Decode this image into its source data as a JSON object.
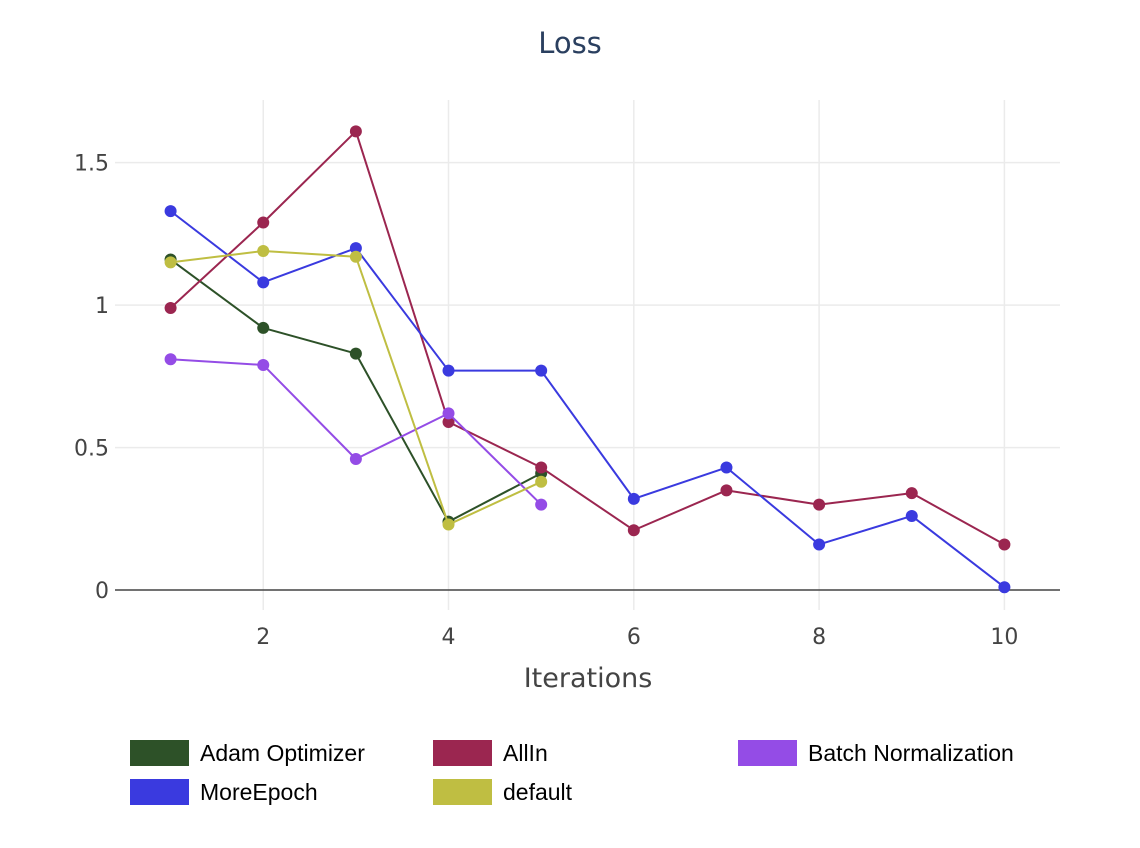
{
  "chart_data": {
    "type": "line",
    "title": "Loss",
    "xlabel": "Iterations",
    "ylabel": "",
    "xlim": [
      0.4,
      10.6
    ],
    "ylim": [
      -0.07,
      1.72
    ],
    "x_ticks": [
      {
        "value": 2,
        "label": "2"
      },
      {
        "value": 4,
        "label": "4"
      },
      {
        "value": 6,
        "label": "6"
      },
      {
        "value": 8,
        "label": "8"
      },
      {
        "value": 10,
        "label": "10"
      }
    ],
    "y_ticks": [
      {
        "value": 0,
        "label": "0"
      },
      {
        "value": 0.5,
        "label": "0.5"
      },
      {
        "value": 1,
        "label": "1"
      },
      {
        "value": 1.5,
        "label": "1.5"
      }
    ],
    "grid": true,
    "legend_position": "bottom",
    "series": [
      {
        "name": "Adam Optimizer",
        "color": "#2d5128",
        "x": [
          1,
          2,
          3,
          4,
          5
        ],
        "y": [
          1.16,
          0.92,
          0.83,
          0.24,
          0.41
        ]
      },
      {
        "name": "AllIn",
        "color": "#9b2650",
        "x": [
          1,
          2,
          3,
          4,
          5,
          6,
          7,
          8,
          9,
          10
        ],
        "y": [
          0.99,
          1.29,
          1.61,
          0.59,
          0.43,
          0.21,
          0.35,
          0.3,
          0.34,
          0.16
        ]
      },
      {
        "name": "Batch Normalization",
        "color": "#944ce6",
        "x": [
          1,
          2,
          3,
          4,
          5
        ],
        "y": [
          0.81,
          0.79,
          0.46,
          0.62,
          0.3
        ]
      },
      {
        "name": "MoreEpoch",
        "color": "#3a3adf",
        "x": [
          1,
          2,
          3,
          4,
          5,
          6,
          7,
          8,
          9,
          10
        ],
        "y": [
          1.33,
          1.08,
          1.2,
          0.77,
          0.77,
          0.32,
          0.43,
          0.16,
          0.26,
          0.01
        ]
      },
      {
        "name": "default",
        "color": "#bfbe42",
        "x": [
          1,
          2,
          3,
          4,
          5
        ],
        "y": [
          1.15,
          1.19,
          1.17,
          0.23,
          0.38
        ]
      }
    ]
  }
}
